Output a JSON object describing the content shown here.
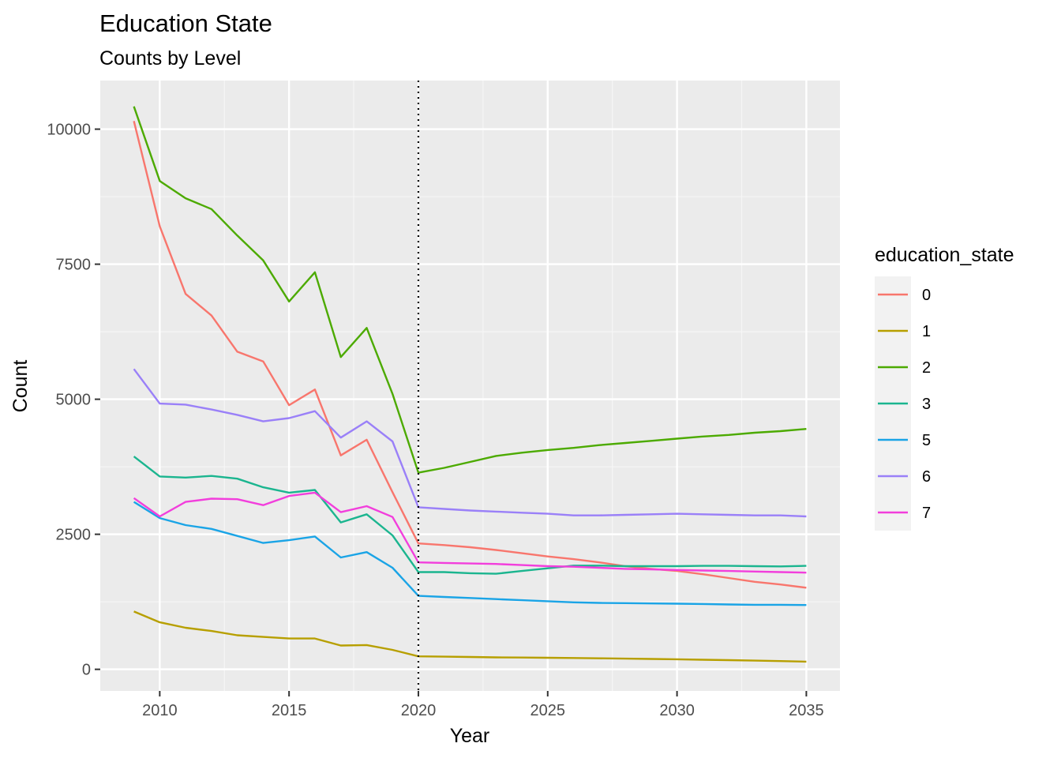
{
  "chart_data": {
    "type": "line",
    "title": "Education State",
    "subtitle": "Counts by Level",
    "xlabel": "Year",
    "ylabel": "Count",
    "xlim": [
      2007.7,
      2036.3
    ],
    "ylim": [
      -400,
      10900
    ],
    "x_ticks": [
      2010,
      2015,
      2020,
      2025,
      2030,
      2035
    ],
    "y_ticks": [
      0,
      2500,
      5000,
      7500,
      10000
    ],
    "grid": true,
    "legend_title": "education_state",
    "legend_position": "right",
    "vline": {
      "x": 2020,
      "style": "dotted",
      "color": "#000000"
    },
    "x": [
      2009,
      2010,
      2011,
      2012,
      2013,
      2014,
      2015,
      2016,
      2017,
      2018,
      2019,
      2020,
      2021,
      2022,
      2023,
      2024,
      2025,
      2026,
      2027,
      2028,
      2029,
      2030,
      2031,
      2032,
      2033,
      2034,
      2035
    ],
    "series": [
      {
        "name": "0",
        "color": "#F8766D",
        "values": [
          10150,
          8200,
          6950,
          6550,
          5880,
          5700,
          4890,
          5180,
          3960,
          4250,
          3280,
          2330,
          2300,
          2260,
          2210,
          2150,
          2090,
          2040,
          1980,
          1910,
          1860,
          1820,
          1760,
          1690,
          1620,
          1570,
          1510
        ]
      },
      {
        "name": "1",
        "color": "#B79F00",
        "values": [
          1070,
          870,
          770,
          710,
          630,
          600,
          570,
          570,
          440,
          450,
          360,
          240,
          235,
          228,
          222,
          218,
          214,
          210,
          204,
          198,
          192,
          186,
          178,
          170,
          162,
          152,
          142
        ]
      },
      {
        "name": "2",
        "color": "#4CAA00",
        "values": [
          10420,
          9040,
          8720,
          8520,
          8030,
          7570,
          6810,
          7350,
          5780,
          6320,
          5100,
          3640,
          3730,
          3840,
          3950,
          4010,
          4060,
          4100,
          4150,
          4190,
          4230,
          4270,
          4310,
          4340,
          4380,
          4410,
          4450
        ]
      },
      {
        "name": "3",
        "color": "#1BB58F",
        "values": [
          3940,
          3570,
          3550,
          3580,
          3530,
          3370,
          3270,
          3320,
          2720,
          2870,
          2480,
          1800,
          1800,
          1780,
          1770,
          1820,
          1870,
          1920,
          1920,
          1910,
          1910,
          1910,
          1915,
          1915,
          1910,
          1905,
          1915
        ]
      },
      {
        "name": "5",
        "color": "#1AA4E6",
        "values": [
          3100,
          2800,
          2670,
          2600,
          2470,
          2340,
          2390,
          2460,
          2070,
          2170,
          1880,
          1360,
          1340,
          1320,
          1300,
          1280,
          1260,
          1240,
          1230,
          1225,
          1220,
          1215,
          1210,
          1200,
          1195,
          1195,
          1190
        ]
      },
      {
        "name": "6",
        "color": "#9A80F8",
        "values": [
          5560,
          4920,
          4900,
          4810,
          4710,
          4590,
          4650,
          4780,
          4290,
          4590,
          4220,
          3000,
          2970,
          2940,
          2920,
          2900,
          2880,
          2850,
          2850,
          2860,
          2870,
          2880,
          2870,
          2860,
          2850,
          2850,
          2830
        ]
      },
      {
        "name": "7",
        "color": "#F23EDC",
        "values": [
          3170,
          2830,
          3100,
          3160,
          3150,
          3040,
          3210,
          3270,
          2910,
          3020,
          2820,
          1980,
          1970,
          1960,
          1950,
          1930,
          1910,
          1900,
          1880,
          1860,
          1850,
          1840,
          1830,
          1820,
          1810,
          1800,
          1790
        ]
      }
    ]
  }
}
